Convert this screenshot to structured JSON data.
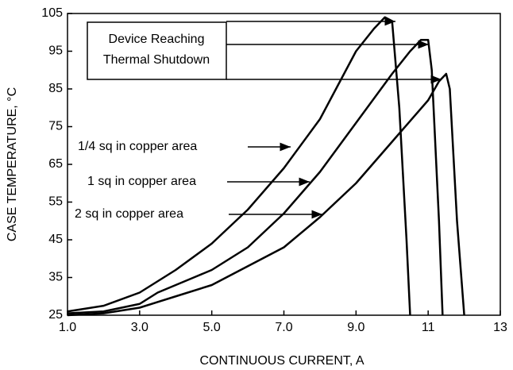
{
  "chart_data": {
    "type": "line",
    "x_label": "CONTINUOUS CURRENT, A",
    "y_label": "CASE TEMPERATURE, °C",
    "annotation": [
      "Device Reaching",
      "Thermal Shutdown"
    ],
    "xlim": [
      1,
      13
    ],
    "xticks": [
      {
        "value": 1,
        "label": "1.0"
      },
      {
        "value": 3,
        "label": "3.0"
      },
      {
        "value": 5,
        "label": "5.0"
      },
      {
        "value": 7,
        "label": "7.0"
      },
      {
        "value": 9,
        "label": "9.0"
      },
      11,
      13
    ],
    "ylim": [
      25,
      105
    ],
    "yticks": [
      25,
      35,
      45,
      55,
      65,
      75,
      85,
      95,
      105
    ],
    "series": [
      {
        "name": "1/4 sq in copper area",
        "color": "#000000",
        "x": [
          1,
          2,
          3,
          4,
          5,
          6,
          7,
          8,
          8.5,
          9,
          9.5,
          9.8,
          10,
          10.2,
          10.4,
          10.5
        ],
        "values": [
          26,
          27.5,
          31,
          37,
          44,
          53,
          64,
          77,
          86,
          95,
          101,
          104,
          103,
          80,
          45,
          25
        ]
      },
      {
        "name": "1 sq in copper area",
        "color": "#000000",
        "x": [
          1,
          2,
          3,
          3.5,
          4.5,
          5,
          6,
          7,
          8,
          9,
          10,
          10.5,
          10.8,
          11,
          11.1,
          11.3,
          11.4
        ],
        "values": [
          25.5,
          26,
          28,
          31,
          35,
          37,
          43,
          52,
          63,
          76,
          89,
          95,
          98,
          98,
          90,
          50,
          25
        ]
      },
      {
        "name": "2 sq in copper area",
        "color": "#000000",
        "x": [
          1,
          2,
          3,
          4,
          5,
          6,
          7,
          8,
          9,
          10,
          11,
          11.3,
          11.5,
          11.6,
          11.8,
          12
        ],
        "values": [
          25,
          25.5,
          27,
          30,
          33,
          38,
          43,
          51,
          60,
          71,
          82,
          87,
          89,
          85,
          50,
          25
        ]
      }
    ]
  }
}
